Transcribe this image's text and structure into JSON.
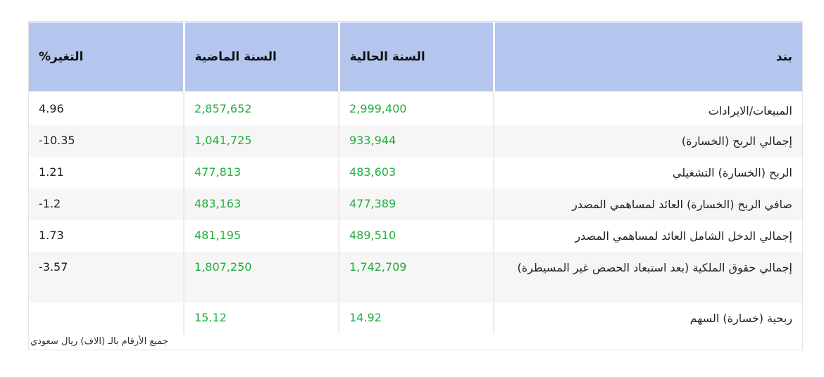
{
  "table": {
    "headers": {
      "item": "بند",
      "current_year": "السنة الحالية",
      "previous_year": "السنة الماضية",
      "change": "التغير%"
    },
    "rows": [
      {
        "item": "المبيعات/الايرادات",
        "current": "2,999,400",
        "previous": "2,857,652",
        "change": "4.96"
      },
      {
        "item": "إجمالي الربح (الخسارة)",
        "current": "933,944",
        "previous": "1,041,725",
        "change": "10.35-"
      },
      {
        "item": "الربح (الخسارة) التشغيلي",
        "current": "483,603",
        "previous": "477,813",
        "change": "1.21"
      },
      {
        "item": "صافي الربح (الخسارة) العائد لمساهمي المصدر",
        "current": "477,389",
        "previous": "483,163",
        "change": "1.2-"
      },
      {
        "item": "إجمالي الدخل الشامل العائد لمساهمي المصدر",
        "current": "489,510",
        "previous": "481,195",
        "change": "1.73"
      },
      {
        "item": "إجمالي حقوق الملكية (بعد استبعاد الحصص غير المسيطرة)",
        "current": "1,742,709",
        "previous": "1,807,250",
        "change": "3.57-"
      },
      {
        "item": "ربحية (خسارة) السهم",
        "current": "14.92",
        "previous": "15.12",
        "change": ""
      }
    ]
  },
  "footnote": "جميع الأرقام بالـ (الاف) ريال سعودي",
  "colors": {
    "header_bg": "#b4c6ee",
    "value_green": "#1fae3b",
    "alt_row_bg": "#f6f6f6"
  }
}
